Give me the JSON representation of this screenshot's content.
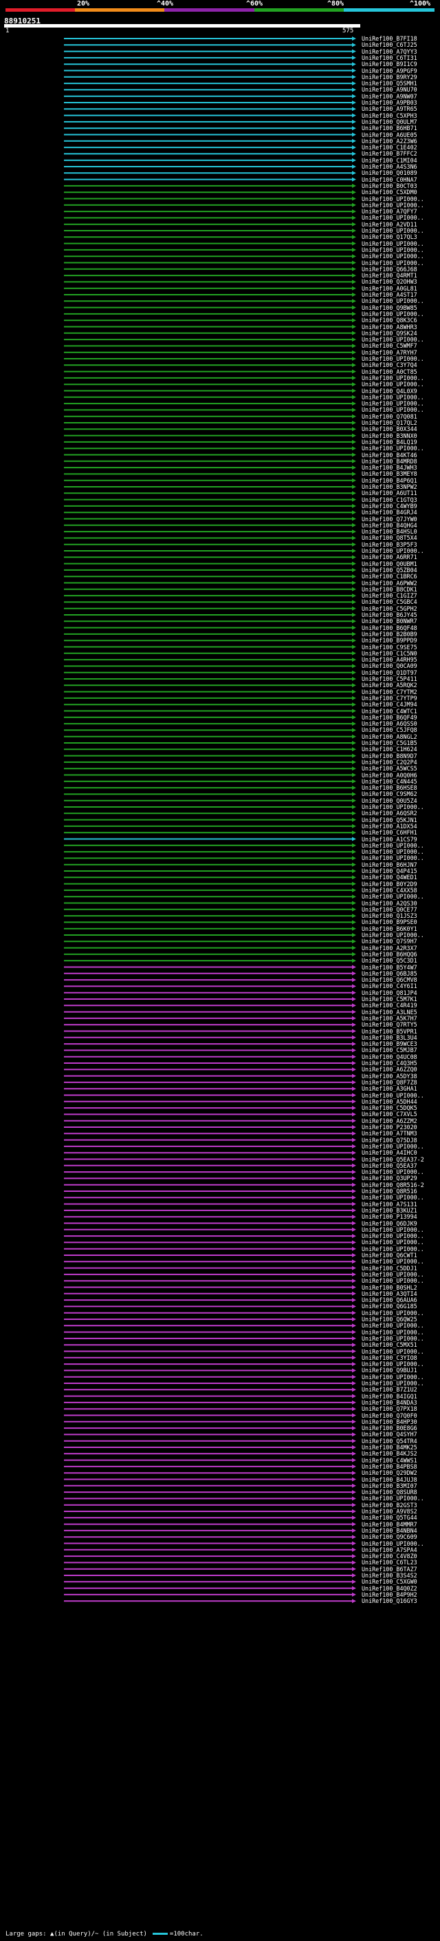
{
  "scale": {
    "ticks": [
      {
        "label": "20%",
        "color": "#e11d2a"
      },
      {
        "label": "^40%",
        "color": "#f28c1a"
      },
      {
        "label": "^60%",
        "color": "#8e24aa"
      },
      {
        "label": "^80%",
        "color": "#22a322"
      },
      {
        "label": "^100%",
        "color": "#26c6da"
      }
    ]
  },
  "query": {
    "id": "88910251",
    "start": "1",
    "end": "575"
  },
  "colors": {
    "cyan": "#26c6da",
    "green": "#22a322",
    "magenta": "#c03ccc",
    "black": "#111111"
  },
  "hits": [
    {
      "label": "UniRef100_B7FI18",
      "c": "cyan"
    },
    {
      "label": "UniRef100_C6TJ25",
      "c": "cyan"
    },
    {
      "label": "UniRef100_A7QYY3",
      "c": "cyan"
    },
    {
      "label": "UniRef100_C6TI31",
      "c": "cyan"
    },
    {
      "label": "UniRef100_B9I1C9",
      "c": "cyan"
    },
    {
      "label": "UniRef100_A9PGF9",
      "c": "cyan"
    },
    {
      "label": "UniRef100_B9RY29",
      "c": "cyan"
    },
    {
      "label": "UniRef100_Q5SMH1",
      "c": "cyan"
    },
    {
      "label": "UniRef100_A9NU70",
      "c": "cyan"
    },
    {
      "label": "UniRef100_A9NW07",
      "c": "cyan"
    },
    {
      "label": "UniRef100_A9PB03",
      "c": "cyan"
    },
    {
      "label": "UniRef100_A9TR65",
      "c": "cyan"
    },
    {
      "label": "UniRef100_C5XPH3",
      "c": "cyan"
    },
    {
      "label": "UniRef100_Q0ULM7",
      "c": "cyan"
    },
    {
      "label": "UniRef100_B6HB71",
      "c": "cyan"
    },
    {
      "label": "UniRef100_A6UE05",
      "c": "cyan"
    },
    {
      "label": "UniRef100_A2Z3W6",
      "c": "cyan"
    },
    {
      "label": "UniRef100_C1E402",
      "c": "cyan"
    },
    {
      "label": "UniRef100_B7FFC2",
      "c": "cyan"
    },
    {
      "label": "UniRef100_C1MI04",
      "c": "cyan"
    },
    {
      "label": "UniRef100_A4S3N6",
      "c": "cyan"
    },
    {
      "label": "UniRef100_Q01089",
      "c": "cyan"
    },
    {
      "label": "UniRef100_C0HNA7",
      "c": "cyan"
    },
    {
      "label": "UniRef100_B0CT03",
      "c": "green"
    },
    {
      "label": "UniRef100_C5XDM0",
      "c": "green"
    },
    {
      "label": "UniRef100_UPI000..",
      "c": "green"
    },
    {
      "label": "UniRef100_UPI000..",
      "c": "green"
    },
    {
      "label": "UniRef100_A7QFY7",
      "c": "green"
    },
    {
      "label": "UniRef100_UPI000..",
      "c": "green"
    },
    {
      "label": "UniRef100_A2VD11",
      "c": "green"
    },
    {
      "label": "UniRef100_UPI000..",
      "c": "green"
    },
    {
      "label": "UniRef100_Q17QL3",
      "c": "green"
    },
    {
      "label": "UniRef100_UPI000..",
      "c": "green"
    },
    {
      "label": "UniRef100_UPI000..",
      "c": "green"
    },
    {
      "label": "UniRef100_UPI000..",
      "c": "green"
    },
    {
      "label": "UniRef100_UPI000..",
      "c": "green"
    },
    {
      "label": "UniRef100_Q66J68",
      "c": "green"
    },
    {
      "label": "UniRef100_Q4RMT1",
      "c": "green"
    },
    {
      "label": "UniRef100_Q2OHW3",
      "c": "green"
    },
    {
      "label": "UniRef100_A0GL81",
      "c": "green"
    },
    {
      "label": "UniRef100_A4ST17",
      "c": "green"
    },
    {
      "label": "UniRef100_UPI000..",
      "c": "green"
    },
    {
      "label": "UniRef100_Q9BW85",
      "c": "green"
    },
    {
      "label": "UniRef100_UPI000..",
      "c": "green"
    },
    {
      "label": "UniRef100_Q8K3C6",
      "c": "green"
    },
    {
      "label": "UniRef100_A8WHR3",
      "c": "green"
    },
    {
      "label": "UniRef100_Q9SK24",
      "c": "green"
    },
    {
      "label": "UniRef100_UPI000..",
      "c": "green"
    },
    {
      "label": "UniRef100_C5WMF7",
      "c": "green"
    },
    {
      "label": "UniRef100_A7RYH7",
      "c": "green"
    },
    {
      "label": "UniRef100_UPI000..",
      "c": "green"
    },
    {
      "label": "UniRef100_C3Y7Q4",
      "c": "green"
    },
    {
      "label": "UniRef100_A0CT85",
      "c": "green"
    },
    {
      "label": "UniRef100_UPI000..",
      "c": "green"
    },
    {
      "label": "UniRef100_UPI000..",
      "c": "green"
    },
    {
      "label": "UniRef100_Q4L0X9",
      "c": "green"
    },
    {
      "label": "UniRef100_UPI000..",
      "c": "green"
    },
    {
      "label": "UniRef100_UPI000..",
      "c": "green"
    },
    {
      "label": "UniRef100_UPI000..",
      "c": "green"
    },
    {
      "label": "UniRef100_Q7Q081",
      "c": "green"
    },
    {
      "label": "UniRef100_Q17QL2",
      "c": "green"
    },
    {
      "label": "UniRef100_B0X344",
      "c": "green"
    },
    {
      "label": "UniRef100_B3NNX0",
      "c": "green"
    },
    {
      "label": "UniRef100_B4LQ19",
      "c": "green"
    },
    {
      "label": "UniRef100_UPI000..",
      "c": "green"
    },
    {
      "label": "UniRef100_B4KT46",
      "c": "green"
    },
    {
      "label": "UniRef100_B4MRD8",
      "c": "green"
    },
    {
      "label": "UniRef100_B4JWH3",
      "c": "green"
    },
    {
      "label": "UniRef100_B3MEY8",
      "c": "green"
    },
    {
      "label": "UniRef100_B4P6Q1",
      "c": "green"
    },
    {
      "label": "UniRef100_B3NPW2",
      "c": "green"
    },
    {
      "label": "UniRef100_A6UT11",
      "c": "green"
    },
    {
      "label": "UniRef100_C1GTQ3",
      "c": "green"
    },
    {
      "label": "UniRef100_C4WYB9",
      "c": "green"
    },
    {
      "label": "UniRef100_B4GRJ4",
      "c": "green"
    },
    {
      "label": "UniRef100_Q7JYW0",
      "c": "green"
    },
    {
      "label": "UniRef100_B4QHG4",
      "c": "green"
    },
    {
      "label": "UniRef100_B4HSL0",
      "c": "green"
    },
    {
      "label": "UniRef100_Q8T5X4",
      "c": "green"
    },
    {
      "label": "UniRef100_B3P5F3",
      "c": "green"
    },
    {
      "label": "UniRef100_UPI000..",
      "c": "green"
    },
    {
      "label": "UniRef100_A6RR71",
      "c": "green"
    },
    {
      "label": "UniRef100_Q0UBM1",
      "c": "green"
    },
    {
      "label": "UniRef100_Q5ZB04",
      "c": "green"
    },
    {
      "label": "UniRef100_C1BRC6",
      "c": "green"
    },
    {
      "label": "UniRef100_A6PWW2",
      "c": "green"
    },
    {
      "label": "UniRef100_B8CDK1",
      "c": "green"
    },
    {
      "label": "UniRef100_C1GIZ7",
      "c": "green"
    },
    {
      "label": "UniRef100_C5GBC4",
      "c": "green"
    },
    {
      "label": "UniRef100_C5GPH2",
      "c": "green"
    },
    {
      "label": "UniRef100_B6JY45",
      "c": "green"
    },
    {
      "label": "UniRef100_B0NWR7",
      "c": "green"
    },
    {
      "label": "UniRef100_B6QF48",
      "c": "green"
    },
    {
      "label": "UniRef100_B2B0B9",
      "c": "green"
    },
    {
      "label": "UniRef100_B9PPD9",
      "c": "green"
    },
    {
      "label": "UniRef100_C9SE75",
      "c": "green"
    },
    {
      "label": "UniRef100_C1C5N0",
      "c": "green"
    },
    {
      "label": "UniRef100_A4RH95",
      "c": "green"
    },
    {
      "label": "UniRef100_Q0CA09",
      "c": "green"
    },
    {
      "label": "UniRef100_Q1DT97",
      "c": "green"
    },
    {
      "label": "UniRef100_C5P411",
      "c": "green"
    },
    {
      "label": "UniRef100_A5RQK2",
      "c": "green"
    },
    {
      "label": "UniRef100_C7YTM2",
      "c": "green"
    },
    {
      "label": "UniRef100_C7YTP9",
      "c": "green"
    },
    {
      "label": "UniRef100_C4JM94",
      "c": "green"
    },
    {
      "label": "UniRef100_C4WTC1",
      "c": "green"
    },
    {
      "label": "UniRef100_B6QF49",
      "c": "green"
    },
    {
      "label": "UniRef100_A6QSS0",
      "c": "green"
    },
    {
      "label": "UniRef100_C5JFQ8",
      "c": "green"
    },
    {
      "label": "UniRef100_A8NGL2",
      "c": "green"
    },
    {
      "label": "UniRef100_C5G1B5",
      "c": "green"
    },
    {
      "label": "UniRef100_C1H624",
      "c": "green"
    },
    {
      "label": "UniRef100_B8N9D7",
      "c": "green"
    },
    {
      "label": "UniRef100_C2Q2P4",
      "c": "green"
    },
    {
      "label": "UniRef100_A5WCS5",
      "c": "green"
    },
    {
      "label": "UniRef100_A0Q0H6",
      "c": "green"
    },
    {
      "label": "UniRef100_C4N445",
      "c": "green"
    },
    {
      "label": "UniRef100_B6HSE8",
      "c": "green"
    },
    {
      "label": "UniRef100_C9SM62",
      "c": "green"
    },
    {
      "label": "UniRef100_Q0U5Z4",
      "c": "green"
    },
    {
      "label": "UniRef100_UPI000..",
      "c": "green"
    },
    {
      "label": "UniRef100_A6QSR2",
      "c": "green"
    },
    {
      "label": "UniRef100_Q5KJN1",
      "c": "green"
    },
    {
      "label": "UniRef100_A1DX54",
      "c": "green"
    },
    {
      "label": "UniRef100_C6HFH1",
      "c": "green"
    },
    {
      "label": "UniRef100_A1CS79",
      "c": "cyan"
    },
    {
      "label": "UniRef100_UPI000..",
      "c": "green"
    },
    {
      "label": "UniRef100_UPI000..",
      "c": "green"
    },
    {
      "label": "UniRef100_UPI000..",
      "c": "green"
    },
    {
      "label": "UniRef100_B6HJN7",
      "c": "green"
    },
    {
      "label": "UniRef100_Q4P415",
      "c": "green"
    },
    {
      "label": "UniRef100_Q4WED1",
      "c": "green"
    },
    {
      "label": "UniRef100_B0Y2D9",
      "c": "green"
    },
    {
      "label": "UniRef100_C4XX58",
      "c": "green"
    },
    {
      "label": "UniRef100_UPI000..",
      "c": "green"
    },
    {
      "label": "UniRef100_A2QS30",
      "c": "green"
    },
    {
      "label": "UniRef100_Q0CE77",
      "c": "green"
    },
    {
      "label": "UniRef100_Q1JSZ3",
      "c": "green"
    },
    {
      "label": "UniRef100_B9PSE0",
      "c": "green"
    },
    {
      "label": "UniRef100_B6K0Y1",
      "c": "green"
    },
    {
      "label": "UniRef100_UPI000..",
      "c": "green"
    },
    {
      "label": "UniRef100_Q7S9H7",
      "c": "green"
    },
    {
      "label": "UniRef100_A2R3X7",
      "c": "green"
    },
    {
      "label": "UniRef100_B6HQQ6",
      "c": "green"
    },
    {
      "label": "UniRef100_Q5C3D1",
      "c": "green"
    },
    {
      "label": "UniRef100_B5Y4W7",
      "c": "magenta"
    },
    {
      "label": "UniRef100_Q6BJ85",
      "c": "magenta"
    },
    {
      "label": "UniRef100_Q6CMV8",
      "c": "magenta"
    },
    {
      "label": "UniRef100_C4Y6I1",
      "c": "magenta"
    },
    {
      "label": "UniRef100_Q81JP4",
      "c": "magenta"
    },
    {
      "label": "UniRef100_C5M7K1",
      "c": "magenta"
    },
    {
      "label": "UniRef100_C4R419",
      "c": "magenta"
    },
    {
      "label": "UniRef100_A3LNE5",
      "c": "magenta"
    },
    {
      "label": "UniRef100_A5K7H7",
      "c": "magenta"
    },
    {
      "label": "UniRef100_Q7RTY5",
      "c": "magenta"
    },
    {
      "label": "UniRef100_B5VPR1",
      "c": "magenta"
    },
    {
      "label": "UniRef100_B3L3U4",
      "c": "magenta"
    },
    {
      "label": "UniRef100_B9WCE3",
      "c": "magenta"
    },
    {
      "label": "UniRef100_C5MJB7",
      "c": "magenta"
    },
    {
      "label": "UniRef100_Q4UC08",
      "c": "magenta"
    },
    {
      "label": "UniRef100_C4Q3H5",
      "c": "magenta"
    },
    {
      "label": "UniRef100_A6ZZQ0",
      "c": "magenta"
    },
    {
      "label": "UniRef100_A5DY38",
      "c": "magenta"
    },
    {
      "label": "UniRef100_Q8F7Z8",
      "c": "magenta"
    },
    {
      "label": "UniRef100_A3GHA1",
      "c": "magenta"
    },
    {
      "label": "UniRef100_UPI000..",
      "c": "magenta"
    },
    {
      "label": "UniRef100_A5DH44",
      "c": "magenta"
    },
    {
      "label": "UniRef100_C5DQK5",
      "c": "magenta"
    },
    {
      "label": "UniRef100_C7XVL5",
      "c": "magenta"
    },
    {
      "label": "UniRef100_A6ZZM2",
      "c": "magenta"
    },
    {
      "label": "UniRef100_P23020",
      "c": "magenta"
    },
    {
      "label": "UniRef100_A7TNM3",
      "c": "magenta"
    },
    {
      "label": "UniRef100_Q75DJ8",
      "c": "magenta"
    },
    {
      "label": "UniRef100_UPI000..",
      "c": "magenta"
    },
    {
      "label": "UniRef100_A4IHC0",
      "c": "magenta"
    },
    {
      "label": "UniRef100_Q5EA37-2",
      "c": "magenta"
    },
    {
      "label": "UniRef100_Q5EA37",
      "c": "magenta"
    },
    {
      "label": "UniRef100_UPI000..",
      "c": "magenta"
    },
    {
      "label": "UniRef100_Q3UP29",
      "c": "magenta"
    },
    {
      "label": "UniRef100_Q8R516-2",
      "c": "magenta"
    },
    {
      "label": "UniRef100_Q8R516",
      "c": "magenta"
    },
    {
      "label": "UniRef100_UPI000..",
      "c": "magenta"
    },
    {
      "label": "UniRef100_A7S131",
      "c": "magenta"
    },
    {
      "label": "UniRef100_B3KUZ1",
      "c": "magenta"
    },
    {
      "label": "UniRef100_P13994",
      "c": "magenta"
    },
    {
      "label": "UniRef100_Q6DJK9",
      "c": "magenta"
    },
    {
      "label": "UniRef100_UPI000..",
      "c": "magenta"
    },
    {
      "label": "UniRef100_UPI000..",
      "c": "magenta"
    },
    {
      "label": "UniRef100_UPI000..",
      "c": "magenta"
    },
    {
      "label": "UniRef100_UPI000..",
      "c": "magenta"
    },
    {
      "label": "UniRef100_Q6CWT1",
      "c": "magenta"
    },
    {
      "label": "UniRef100_UPI000..",
      "c": "magenta"
    },
    {
      "label": "UniRef100_C5DDJ1",
      "c": "magenta"
    },
    {
      "label": "UniRef100_UPI000..",
      "c": "magenta"
    },
    {
      "label": "UniRef100_UPI000..",
      "c": "magenta"
    },
    {
      "label": "UniRef100_B0SHL2",
      "c": "magenta"
    },
    {
      "label": "UniRef100_A3QTI4",
      "c": "magenta"
    },
    {
      "label": "UniRef100_Q6AUA6",
      "c": "magenta"
    },
    {
      "label": "UniRef100_Q6G185",
      "c": "magenta"
    },
    {
      "label": "UniRef100_UPI000..",
      "c": "magenta"
    },
    {
      "label": "UniRef100_Q6QW25",
      "c": "magenta"
    },
    {
      "label": "UniRef100_UPI000..",
      "c": "magenta"
    },
    {
      "label": "UniRef100_UPI000..",
      "c": "magenta"
    },
    {
      "label": "UniRef100_UPI000..",
      "c": "magenta"
    },
    {
      "label": "UniRef100_C5MX51",
      "c": "magenta"
    },
    {
      "label": "UniRef100_UPI000..",
      "c": "magenta"
    },
    {
      "label": "UniRef100_C3YIO8",
      "c": "magenta"
    },
    {
      "label": "UniRef100_UPI000..",
      "c": "magenta"
    },
    {
      "label": "UniRef100_Q9BUJ1",
      "c": "magenta"
    },
    {
      "label": "UniRef100_UPI000..",
      "c": "magenta"
    },
    {
      "label": "UniRef100_UPI000..",
      "c": "magenta"
    },
    {
      "label": "UniRef100_B7Z1U2",
      "c": "magenta"
    },
    {
      "label": "UniRef100_B4IGQ1",
      "c": "magenta"
    },
    {
      "label": "UniRef100_B4NDA3",
      "c": "magenta"
    },
    {
      "label": "UniRef100_Q7PX18",
      "c": "magenta"
    },
    {
      "label": "UniRef100_Q7Q0F0",
      "c": "magenta"
    },
    {
      "label": "UniRef100_B4HP30",
      "c": "magenta"
    },
    {
      "label": "UniRef100_B0E8G6",
      "c": "magenta"
    },
    {
      "label": "UniRef100_Q4SYH7",
      "c": "magenta"
    },
    {
      "label": "UniRef100_Q54TR4",
      "c": "magenta"
    },
    {
      "label": "UniRef100_B4MK25",
      "c": "magenta"
    },
    {
      "label": "UniRef100_B4KJS2",
      "c": "magenta"
    },
    {
      "label": "UniRef100_C4WWS1",
      "c": "magenta"
    },
    {
      "label": "UniRef100_B4PBS8",
      "c": "magenta"
    },
    {
      "label": "UniRef100_Q29DW2",
      "c": "magenta"
    },
    {
      "label": "UniRef100_B4JUJ8",
      "c": "magenta"
    },
    {
      "label": "UniRef100_B3MI07",
      "c": "magenta"
    },
    {
      "label": "UniRef100_Q8SUR8",
      "c": "magenta"
    },
    {
      "label": "UniRef100_UPI000..",
      "c": "magenta"
    },
    {
      "label": "UniRef100_B2GST3",
      "c": "magenta"
    },
    {
      "label": "UniRef100_A9V8S2",
      "c": "magenta"
    },
    {
      "label": "UniRef100_Q5TG44",
      "c": "magenta"
    },
    {
      "label": "UniRef100_B4MMR7",
      "c": "magenta"
    },
    {
      "label": "UniRef100_B4NBN4",
      "c": "magenta"
    },
    {
      "label": "UniRef100_Q9C609",
      "c": "magenta"
    },
    {
      "label": "UniRef100_UPI000..",
      "c": "magenta"
    },
    {
      "label": "UniRef100_A7SPA4",
      "c": "magenta"
    },
    {
      "label": "UniRef100_C4V8Z0",
      "c": "magenta"
    },
    {
      "label": "UniRef100_C6TL23",
      "c": "magenta"
    },
    {
      "label": "UniRef100_B6TAZ7",
      "c": "magenta"
    },
    {
      "label": "UniRef100_B3S4S2",
      "c": "magenta"
    },
    {
      "label": "UniRef100_C5XGW0",
      "c": "magenta"
    },
    {
      "label": "UniRef100_B4Q0Z2",
      "c": "magenta"
    },
    {
      "label": "UniRef100_B4P9H2",
      "c": "magenta"
    },
    {
      "label": "UniRef100_Q16GY3",
      "c": "magenta"
    }
  ],
  "legend": {
    "text": "Large gaps: ▲(in Query)/~ (in Subject)",
    "scale_label": "=100char."
  }
}
